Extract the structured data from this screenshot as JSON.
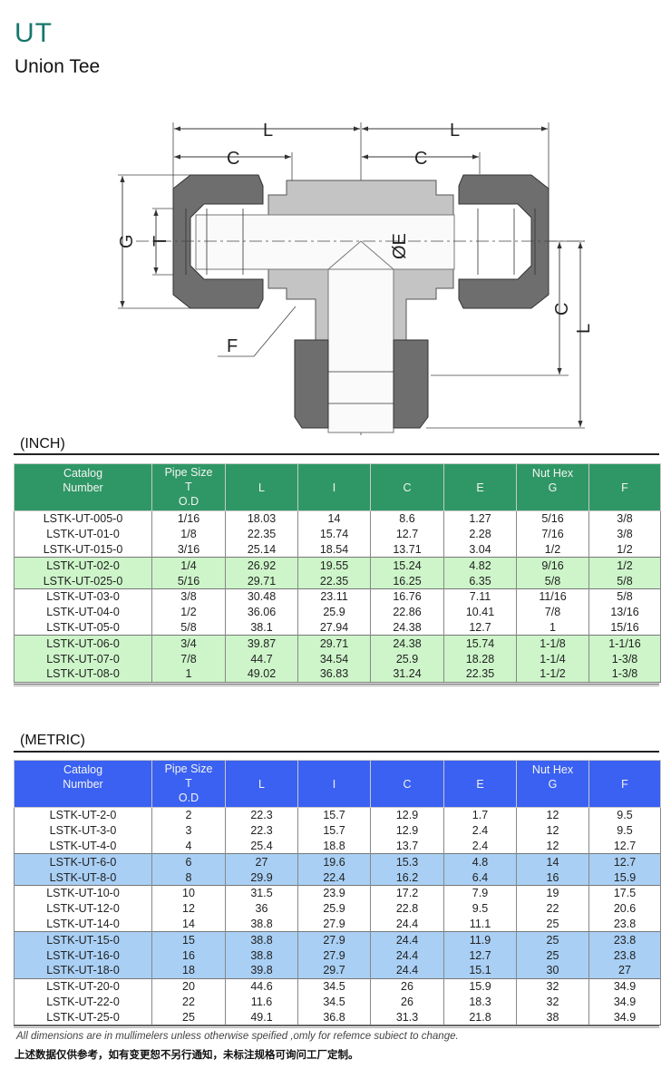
{
  "header": {
    "code": "UT",
    "name": "Union Tee"
  },
  "diagram": {
    "labels": {
      "L": "L",
      "C": "C",
      "G": "G",
      "T": "T",
      "E": "ØE",
      "F": "F"
    }
  },
  "colors": {
    "title": "#17776b",
    "inch_header": "#2f9765",
    "inch_alt": "#cdf5c9",
    "metric_header": "#3a61f2",
    "metric_alt": "#a9cff4"
  },
  "inch": {
    "label": "(INCH)",
    "columns": [
      [
        "Catalog",
        "Number"
      ],
      [
        "Pipe Size",
        "T",
        "O.D"
      ],
      [
        "L"
      ],
      [
        "I"
      ],
      [
        "C"
      ],
      [
        "E"
      ],
      [
        "Nut Hex",
        "G"
      ],
      [
        "F"
      ]
    ],
    "groups": [
      [
        [
          "LSTK-UT-005-0",
          "1/16",
          "18.03",
          "14",
          "8.6",
          "1.27",
          "5/16",
          "3/8"
        ],
        [
          "LSTK-UT-01-0",
          "1/8",
          "22.35",
          "15.74",
          "12.7",
          "2.28",
          "7/16",
          "3/8"
        ],
        [
          "LSTK-UT-015-0",
          "3/16",
          "25.14",
          "18.54",
          "13.71",
          "3.04",
          "1/2",
          "1/2"
        ]
      ],
      [
        [
          "LSTK-UT-02-0",
          "1/4",
          "26.92",
          "19.55",
          "15.24",
          "4.82",
          "9/16",
          "1/2"
        ],
        [
          "LSTK-UT-025-0",
          "5/16",
          "29.71",
          "22.35",
          "16.25",
          "6.35",
          "5/8",
          "5/8"
        ]
      ],
      [
        [
          "LSTK-UT-03-0",
          "3/8",
          "30.48",
          "23.11",
          "16.76",
          "7.11",
          "11/16",
          "5/8"
        ],
        [
          "LSTK-UT-04-0",
          "1/2",
          "36.06",
          "25.9",
          "22.86",
          "10.41",
          "7/8",
          "13/16"
        ],
        [
          "LSTK-UT-05-0",
          "5/8",
          "38.1",
          "27.94",
          "24.38",
          "12.7",
          "1",
          "15/16"
        ]
      ],
      [
        [
          "LSTK-UT-06-0",
          "3/4",
          "39.87",
          "29.71",
          "24.38",
          "15.74",
          "1-1/8",
          "1-1/16"
        ],
        [
          "LSTK-UT-07-0",
          "7/8",
          "44.7",
          "34.54",
          "25.9",
          "18.28",
          "1-1/4",
          "1-3/8"
        ],
        [
          "LSTK-UT-08-0",
          "1",
          "49.02",
          "36.83",
          "31.24",
          "22.35",
          "1-1/2",
          "1-3/8"
        ]
      ]
    ]
  },
  "metric": {
    "label": "(METRIC)",
    "columns": [
      [
        "Catalog",
        "Number"
      ],
      [
        "Pipe Size",
        "T",
        "O.D"
      ],
      [
        "L"
      ],
      [
        "I"
      ],
      [
        "C"
      ],
      [
        "E"
      ],
      [
        "Nut Hex",
        "G"
      ],
      [
        "F"
      ]
    ],
    "groups": [
      [
        [
          "LSTK-UT-2-0",
          "2",
          "22.3",
          "15.7",
          "12.9",
          "1.7",
          "12",
          "9.5"
        ],
        [
          "LSTK-UT-3-0",
          "3",
          "22.3",
          "15.7",
          "12.9",
          "2.4",
          "12",
          "9.5"
        ],
        [
          "LSTK-UT-4-0",
          "4",
          "25.4",
          "18.8",
          "13.7",
          "2.4",
          "12",
          "12.7"
        ]
      ],
      [
        [
          "LSTK-UT-6-0",
          "6",
          "27",
          "19.6",
          "15.3",
          "4.8",
          "14",
          "12.7"
        ],
        [
          "LSTK-UT-8-0",
          "8",
          "29.9",
          "22.4",
          "16.2",
          "6.4",
          "16",
          "15.9"
        ]
      ],
      [
        [
          "LSTK-UT-10-0",
          "10",
          "31.5",
          "23.9",
          "17.2",
          "7.9",
          "19",
          "17.5"
        ],
        [
          "LSTK-UT-12-0",
          "12",
          "36",
          "25.9",
          "22.8",
          "9.5",
          "22",
          "20.6"
        ],
        [
          "LSTK-UT-14-0",
          "14",
          "38.8",
          "27.9",
          "24.4",
          "11.1",
          "25",
          "23.8"
        ]
      ],
      [
        [
          "LSTK-UT-15-0",
          "15",
          "38.8",
          "27.9",
          "24.4",
          "11.9",
          "25",
          "23.8"
        ],
        [
          "LSTK-UT-16-0",
          "16",
          "38.8",
          "27.9",
          "24.4",
          "12.7",
          "25",
          "23.8"
        ],
        [
          "LSTK-UT-18-0",
          "18",
          "39.8",
          "29.7",
          "24.4",
          "15.1",
          "30",
          "27"
        ]
      ],
      [
        [
          "LSTK-UT-20-0",
          "20",
          "44.6",
          "34.5",
          "26",
          "15.9",
          "32",
          "34.9"
        ],
        [
          "LSTK-UT-22-0",
          "22",
          "11.6",
          "34.5",
          "26",
          "18.3",
          "32",
          "34.9"
        ],
        [
          "LSTK-UT-25-0",
          "25",
          "49.1",
          "36.8",
          "31.3",
          "21.8",
          "38",
          "34.9"
        ]
      ]
    ]
  },
  "footer": {
    "note_en": "All dimensions are in mullimelers unless otherwise speified ,omly for refemce subiect to change.",
    "note_cn": "上述数据仅供参考，如有变更恕不另行通知，未标注规格可询问工厂定制。"
  }
}
